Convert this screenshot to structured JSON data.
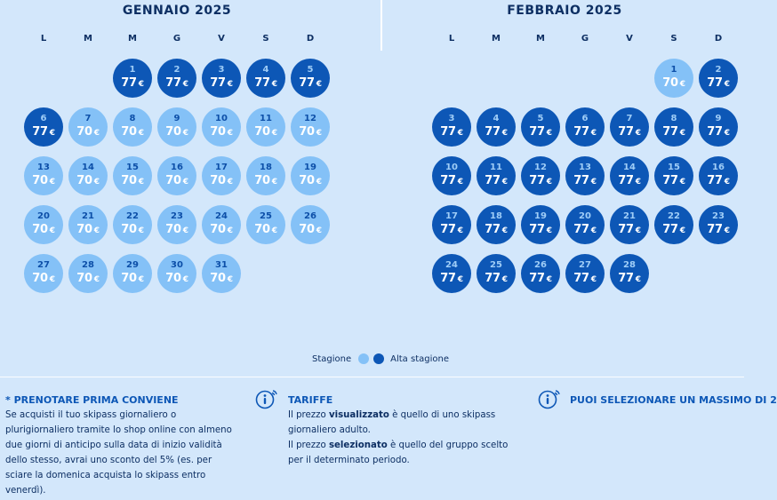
{
  "colors": {
    "background": "#d3e7fb",
    "stagione": "#84c1f7",
    "alta_stagione": "#0d57b6",
    "accent_text": "#0d57b6",
    "dark_text": "#0d2f63"
  },
  "weekday_labels": [
    "L",
    "M",
    "M",
    "G",
    "V",
    "S",
    "D"
  ],
  "months": [
    {
      "title": "GENNAIO  2025",
      "days": [
        {
          "day": "1",
          "price": "77",
          "season": "a"
        },
        {
          "day": "2",
          "price": "77",
          "season": "a"
        },
        {
          "day": "3",
          "price": "77",
          "season": "a"
        },
        {
          "day": "4",
          "price": "77",
          "season": "a"
        },
        {
          "day": "5",
          "price": "77",
          "season": "a"
        },
        {
          "day": "6",
          "price": "77",
          "season": "a"
        },
        {
          "day": "7",
          "price": "70",
          "season": "s"
        },
        {
          "day": "8",
          "price": "70",
          "season": "s"
        },
        {
          "day": "9",
          "price": "70",
          "season": "s"
        },
        {
          "day": "10",
          "price": "70",
          "season": "s"
        },
        {
          "day": "11",
          "price": "70",
          "season": "s"
        },
        {
          "day": "12",
          "price": "70",
          "season": "s"
        },
        {
          "day": "13",
          "price": "70",
          "season": "s"
        },
        {
          "day": "14",
          "price": "70",
          "season": "s"
        },
        {
          "day": "15",
          "price": "70",
          "season": "s"
        },
        {
          "day": "16",
          "price": "70",
          "season": "s"
        },
        {
          "day": "17",
          "price": "70",
          "season": "s"
        },
        {
          "day": "18",
          "price": "70",
          "season": "s"
        },
        {
          "day": "19",
          "price": "70",
          "season": "s"
        },
        {
          "day": "20",
          "price": "70",
          "season": "s"
        },
        {
          "day": "21",
          "price": "70",
          "season": "s"
        },
        {
          "day": "22",
          "price": "70",
          "season": "s"
        },
        {
          "day": "23",
          "price": "70",
          "season": "s"
        },
        {
          "day": "24",
          "price": "70",
          "season": "s"
        },
        {
          "day": "25",
          "price": "70",
          "season": "s"
        },
        {
          "day": "26",
          "price": "70",
          "season": "s"
        },
        {
          "day": "27",
          "price": "70",
          "season": "s"
        },
        {
          "day": "28",
          "price": "70",
          "season": "s"
        },
        {
          "day": "29",
          "price": "70",
          "season": "s"
        },
        {
          "day": "30",
          "price": "70",
          "season": "s"
        },
        {
          "day": "31",
          "price": "70",
          "season": "s"
        }
      ]
    },
    {
      "title": "FEBBRAIO  2025",
      "days": [
        {
          "day": "1",
          "price": "70",
          "season": "s"
        },
        {
          "day": "2",
          "price": "77",
          "season": "a"
        },
        {
          "day": "3",
          "price": "77",
          "season": "a"
        },
        {
          "day": "4",
          "price": "77",
          "season": "a"
        },
        {
          "day": "5",
          "price": "77",
          "season": "a"
        },
        {
          "day": "6",
          "price": "77",
          "season": "a"
        },
        {
          "day": "7",
          "price": "77",
          "season": "a"
        },
        {
          "day": "8",
          "price": "77",
          "season": "a"
        },
        {
          "day": "9",
          "price": "77",
          "season": "a"
        },
        {
          "day": "10",
          "price": "77",
          "season": "a"
        },
        {
          "day": "11",
          "price": "77",
          "season": "a"
        },
        {
          "day": "12",
          "price": "77",
          "season": "a"
        },
        {
          "day": "13",
          "price": "77",
          "season": "a"
        },
        {
          "day": "14",
          "price": "77",
          "season": "a"
        },
        {
          "day": "15",
          "price": "77",
          "season": "a"
        },
        {
          "day": "16",
          "price": "77",
          "season": "a"
        },
        {
          "day": "17",
          "price": "77",
          "season": "a"
        },
        {
          "day": "18",
          "price": "77",
          "season": "a"
        },
        {
          "day": "19",
          "price": "77",
          "season": "a"
        },
        {
          "day": "20",
          "price": "77",
          "season": "a"
        },
        {
          "day": "21",
          "price": "77",
          "season": "a"
        },
        {
          "day": "22",
          "price": "77",
          "season": "a"
        },
        {
          "day": "23",
          "price": "77",
          "season": "a"
        },
        {
          "day": "24",
          "price": "77",
          "season": "a"
        },
        {
          "day": "25",
          "price": "77",
          "season": "a"
        },
        {
          "day": "26",
          "price": "77",
          "season": "a"
        },
        {
          "day": "27",
          "price": "77",
          "season": "a"
        },
        {
          "day": "28",
          "price": "77",
          "season": "a"
        }
      ]
    }
  ],
  "currency_symbol": "€",
  "legend": {
    "stagione": "Stagione",
    "alta_stagione": "Alta stagione"
  },
  "info": {
    "prenotare": {
      "title": "* PRENOTARE PRIMA CONVIENE",
      "body": "Se acquisti il tuo skipass giornaliero o plurigiornaliero tramite lo shop online con almeno due giorni di anticipo sulla data di inizio validità dello stesso, avrai uno sconto del 5% (es. per sciare la domenica acquista lo skipass entro venerdì)."
    },
    "tariffe": {
      "title": "TARIFFE",
      "icon": "info-icon",
      "line1_pre": "Il prezzo ",
      "line1_bold": "visualizzato",
      "line1_post": " è quello di uno skipass giornaliero adulto.",
      "line2_pre": "Il prezzo ",
      "line2_bold": "selezionato",
      "line2_post": " è quello del gruppo scelto per il determinato periodo."
    },
    "massimo": {
      "title": "PUOI SELEZIONARE UN MASSIMO DI 2",
      "icon": "info-icon"
    }
  }
}
